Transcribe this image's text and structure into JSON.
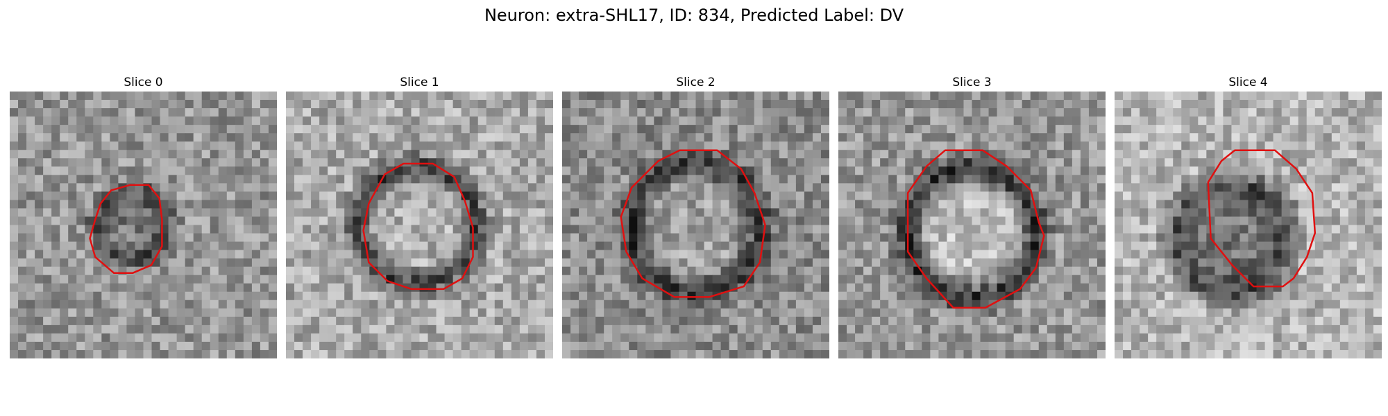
{
  "figure": {
    "title": "Neuron: extra-SHL17, ID: 834, Predicted Label: DV"
  },
  "panels": [
    {
      "title": "Slice 0"
    },
    {
      "title": "Slice 1"
    },
    {
      "title": "Slice 2"
    },
    {
      "title": "Slice 3"
    },
    {
      "title": "Slice 4"
    }
  ],
  "colors": {
    "contour": "#e01010",
    "background": "#ffffff"
  }
}
